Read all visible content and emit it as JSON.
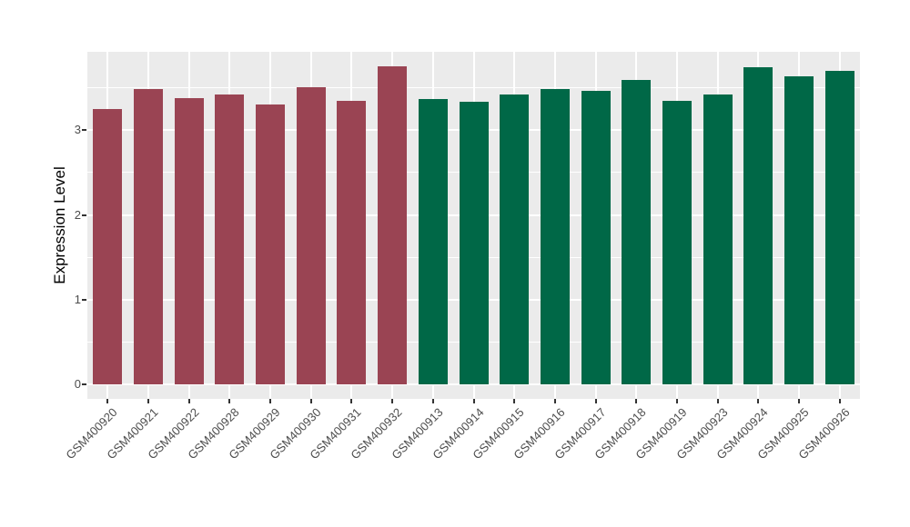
{
  "chart_data": {
    "type": "bar",
    "title": "",
    "xlabel": "",
    "ylabel": "Expression Level",
    "categories": [
      "GSM400920",
      "GSM400921",
      "GSM400922",
      "GSM400928",
      "GSM400929",
      "GSM400930",
      "GSM400931",
      "GSM400932",
      "GSM400913",
      "GSM400914",
      "GSM400915",
      "GSM400916",
      "GSM400917",
      "GSM400918",
      "GSM400919",
      "GSM400923",
      "GSM400924",
      "GSM400925",
      "GSM400926"
    ],
    "values": [
      3.25,
      3.48,
      3.38,
      3.42,
      3.3,
      3.51,
      3.35,
      3.75,
      3.37,
      3.33,
      3.42,
      3.49,
      3.46,
      3.59,
      3.35,
      3.42,
      3.74,
      3.63,
      3.7
    ],
    "groups": [
      "group1",
      "group1",
      "group1",
      "group1",
      "group1",
      "group1",
      "group1",
      "group1",
      "group2",
      "group2",
      "group2",
      "group2",
      "group2",
      "group2",
      "group2",
      "group2",
      "group2",
      "group2",
      "group2"
    ],
    "group_colors": {
      "group1": "#9A4453",
      "group2": "#006847"
    },
    "yticks": [
      0,
      1,
      2,
      3
    ],
    "yticks_minor": [
      0.5,
      1.5,
      2.5,
      3.5
    ],
    "ylim": [
      -0.17,
      3.93
    ],
    "grid": "on",
    "legend": "none",
    "panel_bg": "#EBEBEB",
    "grid_color": "#FFFFFF",
    "tick_text_color": "#4D4D4D",
    "axis_title_color": "#000000"
  }
}
